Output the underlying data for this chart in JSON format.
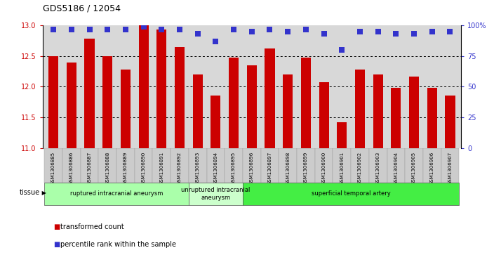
{
  "title": "GDS5186 / 12054",
  "samples": [
    "GSM1306885",
    "GSM1306886",
    "GSM1306887",
    "GSM1306888",
    "GSM1306889",
    "GSM1306890",
    "GSM1306891",
    "GSM1306892",
    "GSM1306893",
    "GSM1306894",
    "GSM1306895",
    "GSM1306896",
    "GSM1306897",
    "GSM1306898",
    "GSM1306899",
    "GSM1306900",
    "GSM1306901",
    "GSM1306902",
    "GSM1306903",
    "GSM1306904",
    "GSM1306905",
    "GSM1306906",
    "GSM1306907"
  ],
  "transformed_count": [
    12.5,
    12.4,
    12.78,
    12.5,
    12.28,
    13.0,
    12.93,
    12.65,
    12.2,
    11.85,
    12.47,
    12.35,
    12.63,
    12.2,
    12.47,
    12.07,
    11.42,
    12.28,
    12.2,
    11.98,
    12.17,
    11.98,
    11.85
  ],
  "percentile_rank": [
    97,
    97,
    97,
    97,
    97,
    99,
    97,
    97,
    93,
    87,
    97,
    95,
    97,
    95,
    97,
    93,
    80,
    95,
    95,
    93,
    93,
    95,
    95
  ],
  "bar_color": "#cc0000",
  "dot_color": "#3333cc",
  "ylim_left": [
    11,
    13
  ],
  "ylim_right": [
    0,
    100
  ],
  "yticks_left": [
    11,
    11.5,
    12,
    12.5,
    13
  ],
  "yticks_right": [
    0,
    25,
    50,
    75,
    100
  ],
  "ytick_labels_right": [
    "0",
    "25",
    "50",
    "75",
    "100%"
  ],
  "grid_values": [
    11.5,
    12.0,
    12.5
  ],
  "tissue_groups": [
    {
      "label": "ruptured intracranial aneurysm",
      "start": 0,
      "end": 8,
      "color": "#aaffaa"
    },
    {
      "label": "unruptured intracranial\naneurysm",
      "start": 8,
      "end": 11,
      "color": "#ccffcc"
    },
    {
      "label": "superficial temporal artery",
      "start": 11,
      "end": 23,
      "color": "#44ee44"
    }
  ],
  "legend_items": [
    {
      "label": "transformed count",
      "color": "#cc0000"
    },
    {
      "label": "percentile rank within the sample",
      "color": "#3333cc"
    }
  ],
  "tissue_label": "tissue",
  "left_axis_color": "#cc0000",
  "right_axis_color": "#3333cc",
  "plot_bg": "#d8d8d8",
  "fig_bg": "#ffffff"
}
